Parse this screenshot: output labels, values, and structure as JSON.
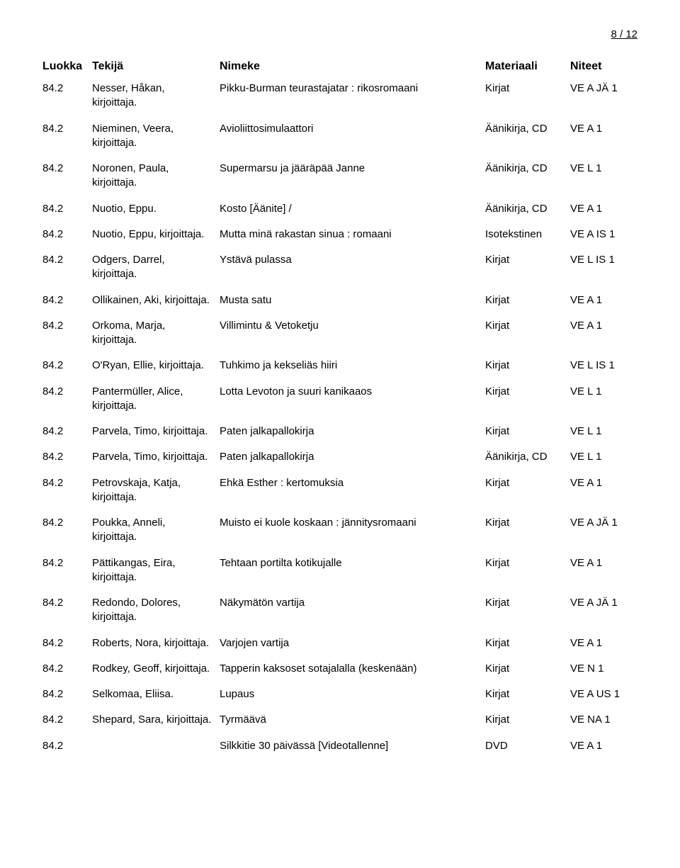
{
  "page_label": "8 / 12",
  "columns": {
    "luokka": "Luokka",
    "tekija": "Tekijä",
    "nimeke": "Nimeke",
    "materiaali": "Materiaali",
    "niteet": "Niteet"
  },
  "rows": [
    {
      "luokka": "84.2",
      "tekija": "Nesser, Håkan, kirjoittaja.",
      "nimeke": "Pikku-Burman teurastajatar : rikosromaani",
      "materiaali": "Kirjat",
      "niteet": "VE A JÄ 1"
    },
    {
      "luokka": "84.2",
      "tekija": "Nieminen, Veera, kirjoittaja.",
      "nimeke": "Avioliittosimulaattori",
      "materiaali": "Äänikirja, CD",
      "niteet": "VE A 1"
    },
    {
      "luokka": "84.2",
      "tekija": "Noronen, Paula, kirjoittaja.",
      "nimeke": "Supermarsu ja jääräpää Janne",
      "materiaali": "Äänikirja, CD",
      "niteet": "VE L 1"
    },
    {
      "luokka": "84.2",
      "tekija": "Nuotio, Eppu.",
      "nimeke": "Kosto [Äänite] /",
      "materiaali": "Äänikirja, CD",
      "niteet": "VE A 1"
    },
    {
      "luokka": "84.2",
      "tekija": "Nuotio, Eppu, kirjoittaja.",
      "nimeke": "Mutta minä rakastan sinua : romaani",
      "materiaali": "Isotekstinen",
      "niteet": "VE A IS 1"
    },
    {
      "luokka": "84.2",
      "tekija": "Odgers, Darrel, kirjoittaja.",
      "nimeke": "Ystävä pulassa",
      "materiaali": "Kirjat",
      "niteet": "VE L IS 1"
    },
    {
      "luokka": "84.2",
      "tekija": "Ollikainen, Aki, kirjoittaja.",
      "nimeke": "Musta satu",
      "materiaali": "Kirjat",
      "niteet": "VE A 1"
    },
    {
      "luokka": "84.2",
      "tekija": "Orkoma, Marja, kirjoittaja.",
      "nimeke": "Villimintu & Vetoketju",
      "materiaali": "Kirjat",
      "niteet": "VE A 1"
    },
    {
      "luokka": "84.2",
      "tekija": "O'Ryan, Ellie, kirjoittaja.",
      "nimeke": "Tuhkimo ja kekseliäs hiiri",
      "materiaali": "Kirjat",
      "niteet": "VE L IS 1"
    },
    {
      "luokka": "84.2",
      "tekija": "Pantermüller, Alice, kirjoittaja.",
      "nimeke": "Lotta Levoton ja suuri kanikaaos",
      "materiaali": "Kirjat",
      "niteet": "VE L 1"
    },
    {
      "luokka": "84.2",
      "tekija": "Parvela, Timo, kirjoittaja.",
      "nimeke": "Paten jalkapallokirja",
      "materiaali": "Kirjat",
      "niteet": "VE L 1"
    },
    {
      "luokka": "84.2",
      "tekija": "Parvela, Timo, kirjoittaja.",
      "nimeke": "Paten jalkapallokirja",
      "materiaali": "Äänikirja, CD",
      "niteet": "VE L 1"
    },
    {
      "luokka": "84.2",
      "tekija": "Petrovskaja, Katja, kirjoittaja.",
      "nimeke": "Ehkä Esther : kertomuksia",
      "materiaali": "Kirjat",
      "niteet": "VE A 1"
    },
    {
      "luokka": "84.2",
      "tekija": "Poukka, Anneli, kirjoittaja.",
      "nimeke": "Muisto ei kuole koskaan : jännitysromaani",
      "materiaali": "Kirjat",
      "niteet": "VE A JÄ 1"
    },
    {
      "luokka": "84.2",
      "tekija": "Pättikangas, Eira, kirjoittaja.",
      "nimeke": "Tehtaan portilta kotikujalle",
      "materiaali": "Kirjat",
      "niteet": "VE A 1"
    },
    {
      "luokka": "84.2",
      "tekija": "Redondo, Dolores, kirjoittaja.",
      "nimeke": "Näkymätön vartija",
      "materiaali": "Kirjat",
      "niteet": "VE A JÄ 1"
    },
    {
      "luokka": "84.2",
      "tekija": "Roberts, Nora, kirjoittaja.",
      "nimeke": "Varjojen vartija",
      "materiaali": "Kirjat",
      "niteet": "VE A 1"
    },
    {
      "luokka": "84.2",
      "tekija": "Rodkey, Geoff, kirjoittaja.",
      "nimeke": "Tapperin kaksoset sotajalalla (keskenään)",
      "materiaali": "Kirjat",
      "niteet": "VE N 1"
    },
    {
      "luokka": "84.2",
      "tekija": "Selkomaa, Eliisa.",
      "nimeke": "Lupaus",
      "materiaali": "Kirjat",
      "niteet": "VE A US 1"
    },
    {
      "luokka": "84.2",
      "tekija": "Shepard, Sara, kirjoittaja.",
      "nimeke": "Tyrmäävä",
      "materiaali": "Kirjat",
      "niteet": "VE NA 1"
    },
    {
      "luokka": "84.2",
      "tekija": "",
      "nimeke": "Silkkitie 30 päivässä [Videotallenne]",
      "materiaali": "DVD",
      "niteet": "VE A 1"
    }
  ]
}
